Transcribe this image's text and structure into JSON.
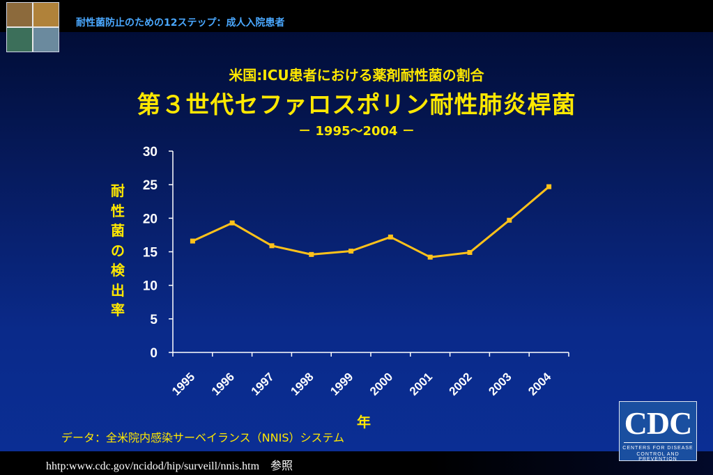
{
  "header": {
    "title": "耐性菌防止のための12ステップ：成人入院患者"
  },
  "chart_data": {
    "type": "line",
    "subtitle": "米国:ICU患者における薬剤耐性菌の割合",
    "title": "第３世代セファロスポリン耐性肺炎桿菌",
    "period": "－ 1995～2004 －",
    "xlabel": "年",
    "ylabel": "耐性菌の検出率",
    "categories": [
      "1995",
      "1996",
      "1997",
      "1998",
      "1999",
      "2000",
      "2001",
      "2002",
      "2003",
      "2004"
    ],
    "values": [
      16.6,
      19.3,
      15.9,
      14.6,
      15.1,
      17.2,
      14.2,
      14.9,
      19.7,
      24.7
    ],
    "ylim": [
      0,
      30
    ],
    "yticks": [
      "0",
      "5",
      "10",
      "15",
      "20",
      "25",
      "30"
    ],
    "line_color": "#ffc21a",
    "grid": false
  },
  "footer": {
    "source": "データ：全米院内感染サーベイランス（NNIS）システム",
    "url": "hhtp:www.cdc.gov/ncidod/hip/surveill/nnis.htm　参照"
  },
  "cdc_logo": {
    "letters": "CDC",
    "line1": "CENTERS FOR DISEASE",
    "line2": "CONTROL AND PREVENTION"
  },
  "colors": {
    "title": "#ffe800",
    "header": "#4aa8ff",
    "axis": "#ffffff"
  }
}
